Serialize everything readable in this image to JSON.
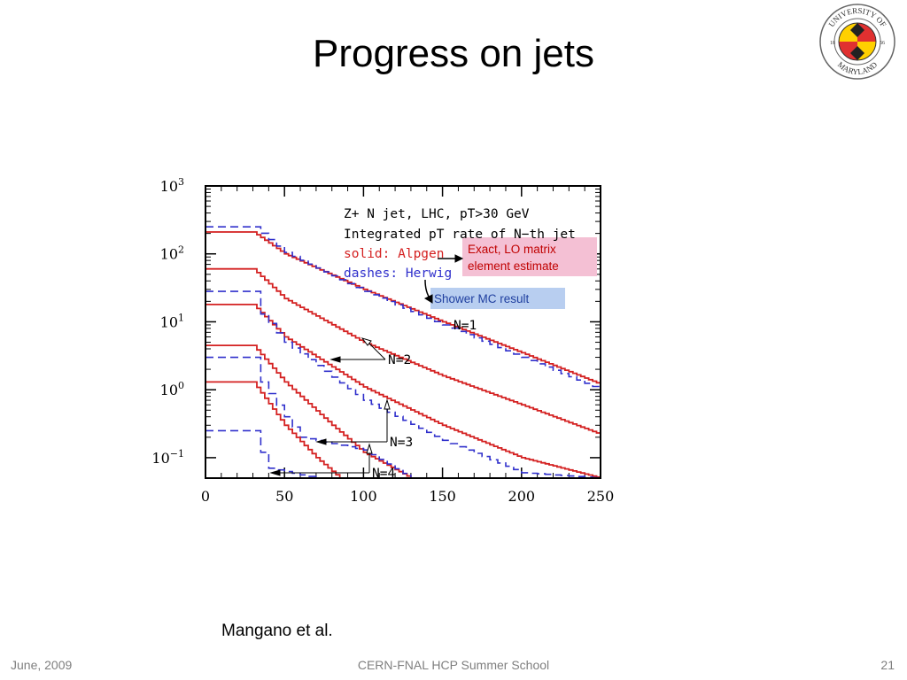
{
  "slide": {
    "title": "Progress on jets",
    "citation": "Mangano et al.",
    "footer_left": "June, 2009",
    "footer_center": "CERN-FNAL HCP Summer School",
    "footer_right": "21"
  },
  "logo": {
    "name": "university-of-maryland-seal",
    "text_top": "UNIVERSITY OF",
    "text_bottom": "MARYLAND",
    "year_left": "18",
    "year_right": "56"
  },
  "colors": {
    "solid": "#d42020",
    "dashed": "#3030cc",
    "frame": "#000000",
    "pink_box": "#f4c0d4",
    "blue_box": "#b8cef0"
  },
  "chart_data": {
    "type": "line",
    "y_scale": "log",
    "xlim": [
      0,
      250
    ],
    "ylim": [
      0.05,
      1000
    ],
    "x_ticks": [
      0,
      50,
      100,
      150,
      200,
      250
    ],
    "x_tick_labels": [
      "0",
      "50",
      "100",
      "150",
      "200",
      "250"
    ],
    "y_ticks": [
      0.1,
      1,
      10,
      100,
      1000
    ],
    "y_tick_labels": [
      {
        "base": "10",
        "exp": "−1"
      },
      {
        "base": "10",
        "exp": "0"
      },
      {
        "base": "10",
        "exp": "1"
      },
      {
        "base": "10",
        "exp": "2"
      },
      {
        "base": "10",
        "exp": "3"
      }
    ],
    "title_lines": [
      "Z+ N jet, LHC, pT>30 GeV",
      "Integrated pT rate of N−th jet"
    ],
    "legend": {
      "solid": "solid: Alpgen",
      "dashed": "dashes: Herwig"
    },
    "annotations": {
      "pink_box": [
        "Exact, LO matrix",
        "element estimate"
      ],
      "blue_box": "Shower MC result",
      "n_labels": [
        "N=1",
        "N=2",
        "N=3",
        "N=4"
      ]
    },
    "series": [
      {
        "style": "solid",
        "x": [
          0,
          30,
          50,
          100,
          150,
          200,
          250
        ],
        "y": [
          210,
          210,
          100,
          30,
          10,
          3.5,
          1.2
        ]
      },
      {
        "style": "dashed",
        "x": [
          0,
          30,
          50,
          100,
          150,
          200,
          250
        ],
        "y": [
          250,
          250,
          105,
          28,
          9,
          3,
          1.0
        ]
      },
      {
        "style": "solid",
        "x": [
          0,
          30,
          50,
          100,
          150,
          200,
          250
        ],
        "y": [
          60,
          60,
          22,
          5,
          1.6,
          0.6,
          0.22
        ]
      },
      {
        "style": "solid",
        "x": [
          0,
          30,
          50,
          100,
          150,
          200,
          250
        ],
        "y": [
          18,
          18,
          6,
          1.1,
          0.3,
          0.1,
          0.05
        ]
      },
      {
        "style": "dashed",
        "x": [
          0,
          30,
          35,
          50,
          100,
          150,
          200,
          250
        ],
        "y": [
          28,
          28,
          13,
          5,
          0.7,
          0.18,
          0.06,
          0.05
        ]
      },
      {
        "style": "solid",
        "x": [
          0,
          30,
          50,
          80,
          100,
          130
        ],
        "y": [
          4.5,
          4.5,
          1.3,
          0.3,
          0.12,
          0.05
        ]
      },
      {
        "style": "dashed",
        "x": [
          0,
          30,
          35,
          50,
          60,
          100,
          130
        ],
        "y": [
          3,
          3,
          1.3,
          0.4,
          0.2,
          0.13,
          0.05
        ]
      },
      {
        "style": "solid",
        "x": [
          0,
          30,
          50,
          70,
          85
        ],
        "y": [
          1.3,
          1.3,
          0.3,
          0.1,
          0.05
        ]
      },
      {
        "style": "dashed",
        "x": [
          0,
          30,
          35,
          40,
          70,
          90
        ],
        "y": [
          0.25,
          0.25,
          0.12,
          0.07,
          0.05,
          0.05
        ]
      }
    ]
  }
}
